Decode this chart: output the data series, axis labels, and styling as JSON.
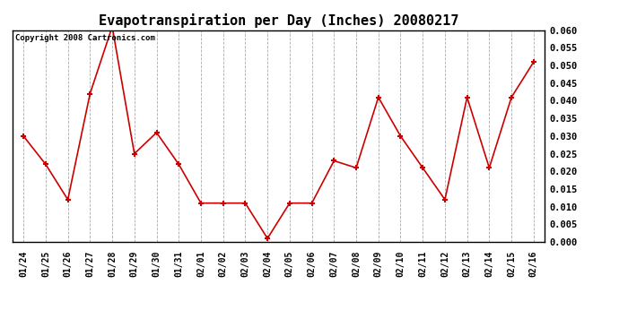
{
  "title": "Evapotranspiration per Day (Inches) 20080217",
  "copyright_text": "Copyright 2008 Cartronics.com",
  "dates": [
    "01/24",
    "01/25",
    "01/26",
    "01/27",
    "01/28",
    "01/29",
    "01/30",
    "01/31",
    "02/01",
    "02/02",
    "02/03",
    "02/04",
    "02/05",
    "02/06",
    "02/07",
    "02/08",
    "02/09",
    "02/10",
    "02/11",
    "02/12",
    "02/13",
    "02/14",
    "02/15",
    "02/16"
  ],
  "values": [
    0.03,
    0.022,
    0.012,
    0.042,
    0.061,
    0.025,
    0.031,
    0.022,
    0.011,
    0.011,
    0.011,
    0.001,
    0.011,
    0.011,
    0.023,
    0.021,
    0.041,
    0.03,
    0.021,
    0.012,
    0.041,
    0.021,
    0.041,
    0.051
  ],
  "line_color": "#cc0000",
  "marker": "+",
  "marker_size": 5,
  "marker_edge_width": 1.5,
  "line_width": 1.2,
  "ylim": [
    0.0,
    0.06
  ],
  "yticks": [
    0.0,
    0.005,
    0.01,
    0.015,
    0.02,
    0.025,
    0.03,
    0.035,
    0.04,
    0.045,
    0.05,
    0.055,
    0.06
  ],
  "background_color": "#ffffff",
  "grid_color": "#aaaaaa",
  "grid_linestyle": "--",
  "title_fontsize": 11,
  "copyright_fontsize": 6.5,
  "tick_fontsize": 7,
  "ytick_fontsize": 7.5,
  "fig_width": 6.9,
  "fig_height": 3.75,
  "dpi": 100
}
